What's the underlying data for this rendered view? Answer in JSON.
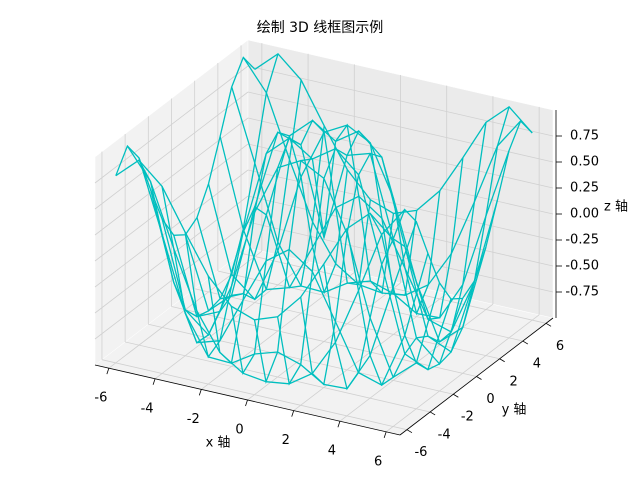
{
  "chart_data": {
    "type": "wireframe",
    "title": "绘制 3D 线框图示例",
    "x_label": "x 轴",
    "y_label": "y 轴",
    "z_label": "z 轴",
    "color": "#00bfbf",
    "x": [
      -6,
      -5,
      -4,
      -3,
      -2,
      -1,
      0,
      1,
      2,
      3,
      4,
      5,
      6
    ],
    "y": [
      -6,
      -5,
      -4,
      -3,
      -2,
      -1,
      0,
      1,
      2,
      3,
      4,
      5,
      6
    ],
    "z": [
      [
        0.8,
        1,
        0.8,
        0.41,
        0.04,
        -0.2,
        -0.28,
        -0.2,
        0.04,
        0.41,
        0.8,
        1,
        0.8
      ],
      [
        1,
        0.71,
        0.12,
        -0.43,
        -0.78,
        -0.93,
        -0.96,
        -0.93,
        -0.78,
        -0.43,
        0.12,
        0.71,
        1
      ],
      [
        0.8,
        0.12,
        -0.59,
        -0.96,
        -0.97,
        -0.83,
        -0.76,
        -0.83,
        -0.97,
        -0.96,
        -0.59,
        0.12,
        0.8
      ],
      [
        0.41,
        -0.43,
        -0.96,
        -0.89,
        -0.45,
        -0.02,
        0.14,
        -0.02,
        -0.45,
        -0.89,
        -0.96,
        -0.43,
        0.41
      ],
      [
        0.04,
        -0.78,
        -0.97,
        -0.45,
        0.31,
        0.79,
        0.91,
        0.79,
        0.31,
        -0.45,
        -0.97,
        -0.78,
        0.04
      ],
      [
        -0.2,
        -0.93,
        -0.83,
        -0.02,
        0.79,
        0.99,
        0.84,
        0.99,
        0.79,
        -0.02,
        -0.83,
        -0.93,
        -0.2
      ],
      [
        -0.28,
        -0.96,
        -0.76,
        0.14,
        0.91,
        0.84,
        0,
        0.84,
        0.91,
        0.14,
        -0.76,
        -0.96,
        -0.28
      ],
      [
        -0.2,
        -0.93,
        -0.83,
        -0.02,
        0.79,
        0.99,
        0.84,
        0.99,
        0.79,
        -0.02,
        -0.83,
        -0.93,
        -0.2
      ],
      [
        0.04,
        -0.78,
        -0.97,
        -0.45,
        0.31,
        0.79,
        0.91,
        0.79,
        0.31,
        -0.45,
        -0.97,
        -0.78,
        0.04
      ],
      [
        0.41,
        -0.43,
        -0.96,
        -0.89,
        -0.45,
        -0.02,
        0.14,
        -0.02,
        -0.45,
        -0.89,
        -0.96,
        -0.43,
        0.41
      ],
      [
        0.8,
        0.12,
        -0.59,
        -0.96,
        -0.97,
        -0.83,
        -0.76,
        -0.83,
        -0.97,
        -0.96,
        -0.59,
        0.12,
        0.8
      ],
      [
        1,
        0.71,
        0.12,
        -0.43,
        -0.78,
        -0.93,
        -0.96,
        -0.93,
        -0.78,
        -0.43,
        0.12,
        0.71,
        1
      ],
      [
        0.8,
        1,
        0.8,
        0.41,
        0.04,
        -0.2,
        -0.28,
        -0.2,
        0.04,
        0.41,
        0.8,
        1,
        0.8
      ]
    ],
    "xlim": [
      -6.6,
      6.6
    ],
    "ylim": [
      -6.6,
      6.6
    ],
    "zlim": [
      -1,
      1
    ],
    "xticks": [
      -6,
      -4,
      -2,
      0,
      2,
      4,
      6
    ],
    "yticks": [
      -6,
      -4,
      -2,
      0,
      2,
      4,
      6
    ],
    "zticks": [
      -0.75,
      {
        "value": -0.5,
        "label": "-0.50"
      },
      -0.25,
      {
        "value": 0,
        "label": "0.00"
      },
      0.25,
      {
        "value": 0.5,
        "label": "0.50"
      },
      0.75
    ],
    "grid": true
  }
}
